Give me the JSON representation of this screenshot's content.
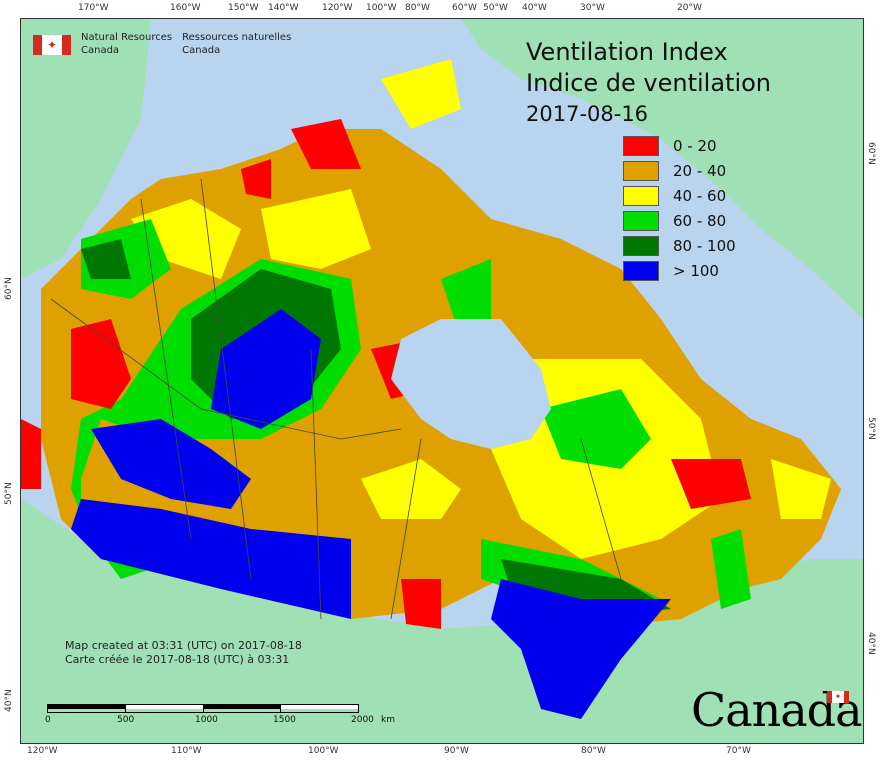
{
  "top_ticks": [
    "170°W",
    "160°W",
    "150°W",
    "140°W",
    "120°W",
    "100°W",
    "80°W",
    "60°W",
    "50°W",
    "40°W",
    "30°W",
    "20°W"
  ],
  "bottom_ticks": [
    "120°W",
    "110°W",
    "100°W",
    "90°W",
    "80°W",
    "70°W"
  ],
  "left_ticks": [
    "60°N",
    "50°N",
    "40°N"
  ],
  "right_ticks": [
    "60°N",
    "50°N",
    "40°N"
  ],
  "agency": {
    "en_line1": "Natural Resources",
    "en_line2": "Canada",
    "fr_line1": "Ressources naturelles",
    "fr_line2": "Canada"
  },
  "title": {
    "line1": "Ventilation Index",
    "line2": "Indice de ventilation",
    "date": "2017-08-16"
  },
  "legend": [
    {
      "label": "0 - 20",
      "color": "#ff0000"
    },
    {
      "label": "20 - 40",
      "color": "#dfa100"
    },
    {
      "label": "40 - 60",
      "color": "#ffff00"
    },
    {
      "label": "60 - 80",
      "color": "#00dd00"
    },
    {
      "label": "80 - 100",
      "color": "#007700"
    },
    {
      "label": "> 100",
      "color": "#0000ee"
    }
  ],
  "footer": {
    "line1": "Map created at 03:31 (UTC) on 2017-08-18",
    "line2": "Carte créée le 2017-08-18 (UTC) à 03:31"
  },
  "scale": {
    "labels": [
      "0",
      "500",
      "1000",
      "1500",
      "2000"
    ],
    "unit": "km"
  },
  "wordmark": "Canada",
  "colors": {
    "ocean": "#b9d4ee",
    "land": "#9fe0b5"
  }
}
